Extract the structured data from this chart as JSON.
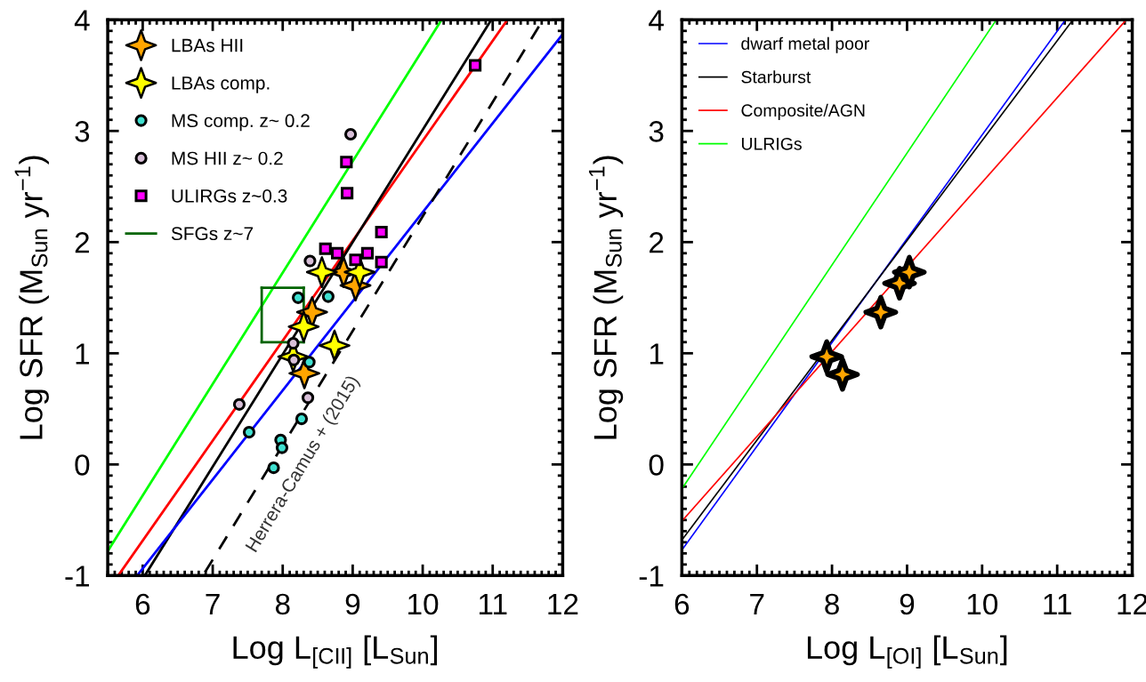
{
  "chart_data": [
    {
      "type": "scatter",
      "xlabel": "Log L$_{[CII]}$ [L$_{Sun}$]",
      "ylabel": "Log SFR (M$_{Sun}$ yr$^{−1}$)",
      "xlim": [
        5.5,
        12
      ],
      "ylim": [
        -1,
        4
      ],
      "xticks": [
        6,
        7,
        8,
        9,
        10,
        11,
        12
      ],
      "yticks": [
        -1,
        0,
        1,
        2,
        3,
        4
      ],
      "grid": false,
      "legend": "top left",
      "annotations": [
        "Herrera-Camus + (2015)"
      ],
      "series": [
        {
          "type": "line",
          "color": "#00ff00",
          "x": [
            5.5,
            10.27
          ],
          "values": [
            -0.78,
            4.0
          ]
        },
        {
          "type": "line",
          "color": "#ff0000",
          "x": [
            5.65,
            11.21
          ],
          "values": [
            -1.0,
            4.0
          ]
        },
        {
          "type": "line",
          "color": "#000000",
          "x": [
            6.03,
            10.98
          ],
          "values": [
            -1.0,
            4.0
          ]
        },
        {
          "type": "line",
          "color": "#0000ff",
          "x": [
            5.92,
            12.0
          ],
          "values": [
            -1.0,
            3.87
          ]
        },
        {
          "type": "line",
          "color": "#000000",
          "line_style": "dashed",
          "x": [
            6.89,
            11.68
          ],
          "values": [
            -0.97,
            3.96
          ]
        },
        {
          "type": "scatter",
          "name": "LBAs HII",
          "color": "#ffa500",
          "marker": "star",
          "x": [
            8.87,
            9.04,
            8.42,
            8.31
          ],
          "values": [
            1.73,
            1.61,
            1.37,
            0.82
          ]
        },
        {
          "type": "scatter",
          "name": "LBAs comp.",
          "color": "#ffff00",
          "marker": "star",
          "x": [
            8.56,
            9.1,
            8.3,
            8.15,
            8.74
          ],
          "values": [
            1.73,
            1.73,
            1.24,
            0.97,
            1.07
          ]
        },
        {
          "type": "scatter",
          "name": "MS comp. z~ 0.2",
          "color": "#40e0d0",
          "marker": "circle",
          "x": [
            8.22,
            8.65,
            8.38,
            8.27,
            7.52,
            7.97,
            7.99,
            7.87
          ],
          "values": [
            1.5,
            1.51,
            0.92,
            0.41,
            0.29,
            0.22,
            0.15,
            -0.03
          ]
        },
        {
          "type": "scatter",
          "name": "MS HII z~ 0.2",
          "color": "#d8bfd8",
          "marker": "circle",
          "x": [
            8.97,
            8.39,
            7.38,
            8.36,
            8.15,
            8.16
          ],
          "values": [
            2.97,
            1.83,
            0.54,
            0.6,
            1.09,
            0.94
          ]
        },
        {
          "type": "scatter",
          "name": "ULIRGs z~0.3",
          "color": "#ff00ff",
          "marker": "square",
          "x": [
            10.75,
            8.91,
            8.92,
            9.41,
            8.61,
            8.78,
            9.04,
            9.21,
            9.41
          ],
          "values": [
            3.59,
            2.72,
            2.44,
            2.09,
            1.94,
            1.9,
            1.84,
            1.9,
            1.82
          ]
        },
        {
          "type": "line",
          "name": "SFGs z~7",
          "color": "#006400",
          "x": [
            7.7,
            8.3
          ],
          "values": [
            1.59,
            1.59
          ]
        },
        {
          "type": "line",
          "color": "#006400",
          "x": [
            7.7,
            8.3
          ],
          "values": [
            1.1,
            1.1
          ]
        },
        {
          "type": "line",
          "color": "#006400",
          "x": [
            7.7,
            7.7
          ],
          "values": [
            1.1,
            1.59
          ]
        },
        {
          "type": "line",
          "color": "#006400",
          "x": [
            8.3,
            8.3
          ],
          "values": [
            1.1,
            1.59
          ]
        }
      ]
    },
    {
      "type": "scatter",
      "xlabel": "Log L$_{[OI]}$ [L$_{Sun}$]",
      "ylabel": "Log SFR (M$_{Sun}$ yr$^{−1}$)",
      "xlim": [
        6,
        12
      ],
      "ylim": [
        -1,
        4
      ],
      "xticks": [
        6,
        7,
        8,
        9,
        10,
        11,
        12
      ],
      "yticks": [
        -1,
        0,
        1,
        2,
        3,
        4
      ],
      "grid": false,
      "legend": "top left",
      "series": [
        {
          "type": "line",
          "name": "dwarf metal poor",
          "color": "#0000ff",
          "x": [
            6,
            11.11
          ],
          "values": [
            -0.77,
            4.0
          ]
        },
        {
          "type": "line",
          "name": "Starburst",
          "color": "#000000",
          "x": [
            6,
            11.21
          ],
          "values": [
            -0.68,
            4.0
          ]
        },
        {
          "type": "line",
          "name": "Composite/AGN",
          "color": "#ff0000",
          "x": [
            6,
            11.92
          ],
          "values": [
            -0.51,
            4.0
          ]
        },
        {
          "type": "line",
          "name": "ULRIGs",
          "color": "#00ff00",
          "x": [
            6,
            10.19
          ],
          "values": [
            -0.22,
            4.0
          ]
        },
        {
          "type": "scatter",
          "color": "#ffa500",
          "marker": "star",
          "x": [
            7.93,
            8.14,
            8.65,
            8.9,
            9.03
          ],
          "values": [
            0.97,
            0.81,
            1.37,
            1.63,
            1.73
          ]
        }
      ]
    }
  ]
}
